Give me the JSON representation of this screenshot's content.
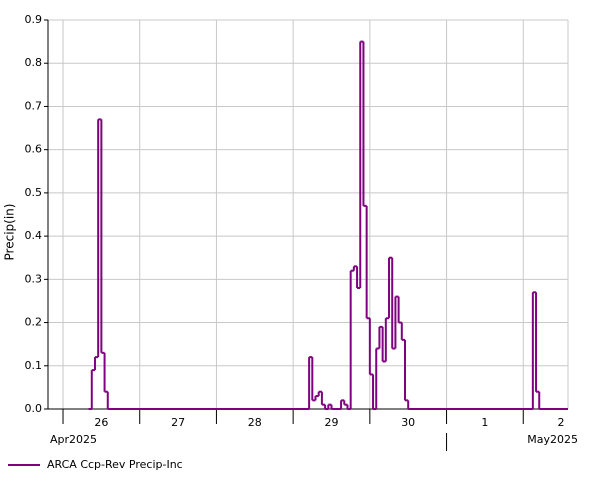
{
  "chart_data": {
    "type": "step",
    "ylabel": "Precip(in)",
    "series": [
      {
        "name": "ARCA Ccp-Rev Precip-Inc",
        "color": "#800080",
        "x": [
          8,
          9,
          10,
          11,
          12,
          13,
          14,
          77,
          78,
          79,
          80,
          81,
          82,
          83,
          84,
          87,
          88,
          89,
          90,
          91,
          92,
          93,
          94,
          95,
          96,
          97,
          98,
          99,
          100,
          101,
          102,
          103,
          104,
          105,
          106,
          107,
          108,
          147,
          148,
          149
        ],
        "values": [
          0,
          0.09,
          0.12,
          0.67,
          0.13,
          0.04,
          0,
          0.12,
          0.02,
          0.03,
          0.04,
          0.01,
          0,
          0.01,
          0,
          0.02,
          0.01,
          0,
          0.32,
          0.33,
          0.28,
          0.85,
          0.47,
          0.21,
          0.08,
          0,
          0.14,
          0.19,
          0.11,
          0.21,
          0.35,
          0.14,
          0.26,
          0.2,
          0.16,
          0.02,
          0,
          0.27,
          0.04,
          0
        ]
      }
    ],
    "xlim": [
      -4.7,
      158
    ],
    "xticks": [
      {
        "value": 0,
        "label": "26"
      },
      {
        "value": 24,
        "label": "27"
      },
      {
        "value": 48,
        "label": "28"
      },
      {
        "value": 72,
        "label": "29"
      },
      {
        "value": 96,
        "label": "30"
      },
      {
        "value": 120,
        "label": "1"
      },
      {
        "value": 144,
        "label": "2"
      }
    ],
    "month_labels": [
      {
        "value": 0,
        "label": "Apr2025"
      },
      {
        "value": 120,
        "label": "May2025"
      }
    ],
    "ylim": [
      0,
      0.9
    ],
    "yticks": [
      {
        "value": 0,
        "label": "0.0"
      },
      0.1,
      0.2,
      0.3,
      0.4,
      0.5,
      0.6,
      0.7,
      0.8,
      0.9
    ],
    "grid": true,
    "legend": "bottom"
  }
}
